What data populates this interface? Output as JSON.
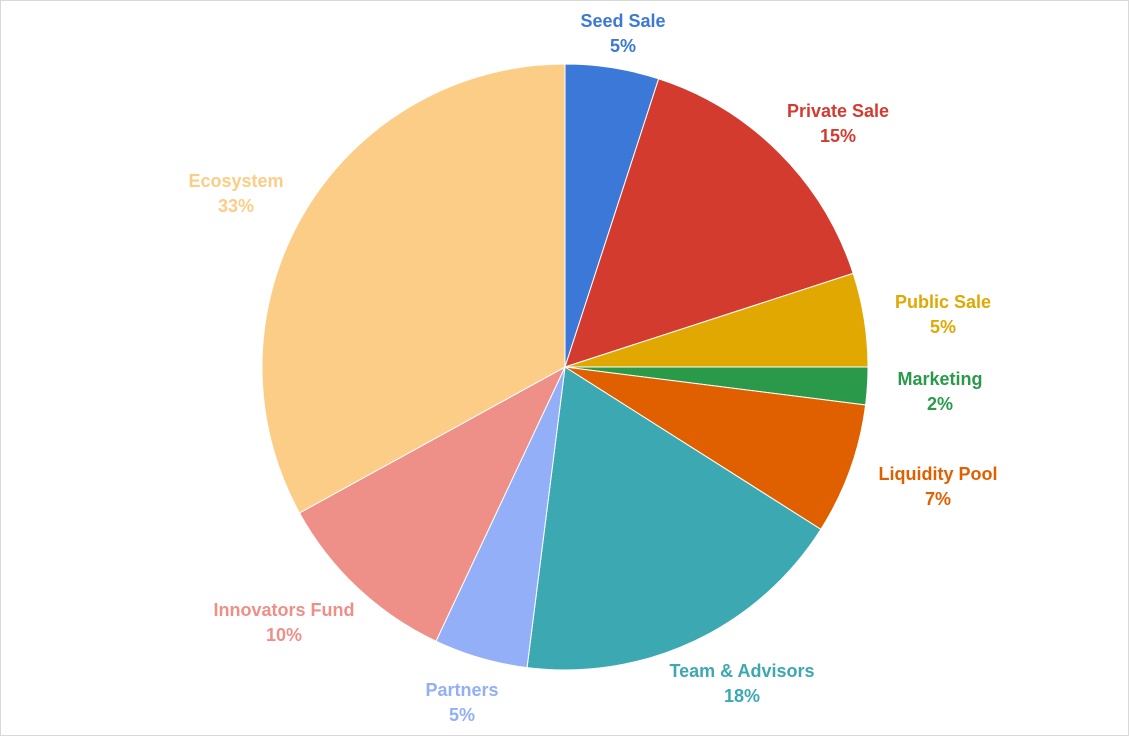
{
  "chart_data": {
    "type": "pie",
    "title": "",
    "start_angle_deg": 0,
    "direction": "clockwise",
    "slices": [
      {
        "label": "Seed Sale",
        "value": 5,
        "pct_text": "5%",
        "color": "#3c78d8"
      },
      {
        "label": "Private Sale",
        "value": 15,
        "pct_text": "15%",
        "color": "#d33b2f"
      },
      {
        "label": "Public Sale",
        "value": 5,
        "pct_text": "5%",
        "color": "#e0a800"
      },
      {
        "label": "Marketing",
        "value": 2,
        "pct_text": "2%",
        "color": "#2a9a4a"
      },
      {
        "label": "Liquidity Pool",
        "value": 7,
        "pct_text": "7%",
        "color": "#e06000"
      },
      {
        "label": "Team &  Advisors",
        "value": 18,
        "pct_text": "18%",
        "color": "#3ca8b2"
      },
      {
        "label": "Partners",
        "value": 5,
        "pct_text": "5%",
        "color": "#93aff7"
      },
      {
        "label": "Innovators Fund",
        "value": 10,
        "pct_text": "10%",
        "color": "#ee8f88"
      },
      {
        "label": "Ecosystem",
        "value": 33,
        "pct_text": "33%",
        "color": "#fbcd86"
      }
    ]
  }
}
